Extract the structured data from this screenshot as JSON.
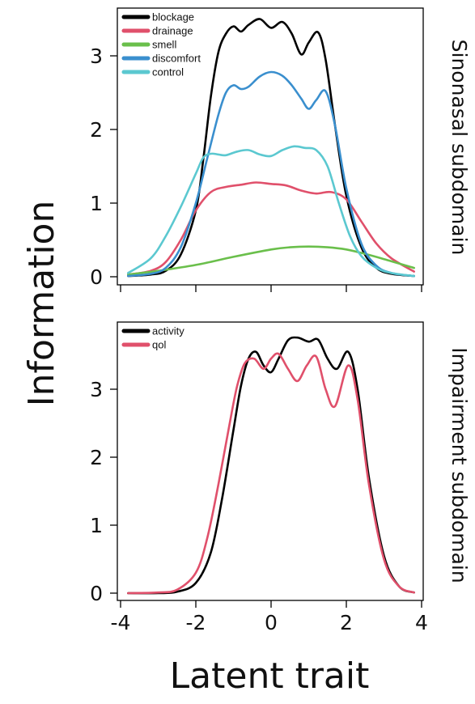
{
  "chart_data": [
    {
      "type": "line",
      "panel_title": "Sinonasal subdomain",
      "xlabel": "Latent trait",
      "ylabel": "Information",
      "xlim": [
        -4,
        4
      ],
      "ylim": [
        0,
        3.6
      ],
      "yticks": [
        "0",
        "1",
        "2",
        "3"
      ],
      "legend_position": "top-left",
      "series": [
        {
          "name": "blockage",
          "color": "#000000",
          "x": [
            -3.8,
            -3.2,
            -2.8,
            -2.4,
            -2.0,
            -1.8,
            -1.6,
            -1.4,
            -1.2,
            -1.0,
            -0.8,
            -0.6,
            -0.3,
            0.0,
            0.3,
            0.55,
            0.8,
            1.0,
            1.25,
            1.45,
            1.7,
            2.0,
            2.4,
            2.8,
            3.2,
            3.8
          ],
          "y": [
            0.01,
            0.03,
            0.08,
            0.3,
            0.9,
            1.6,
            2.45,
            3.05,
            3.3,
            3.4,
            3.33,
            3.42,
            3.5,
            3.38,
            3.46,
            3.3,
            3.02,
            3.18,
            3.32,
            2.95,
            2.05,
            1.1,
            0.4,
            0.12,
            0.04,
            0.01
          ]
        },
        {
          "name": "drainage",
          "color": "#e0506b",
          "x": [
            -3.8,
            -3.2,
            -2.8,
            -2.4,
            -2.0,
            -1.6,
            -1.2,
            -0.8,
            -0.4,
            0.0,
            0.4,
            0.8,
            1.2,
            1.6,
            2.0,
            2.4,
            2.8,
            3.2,
            3.8
          ],
          "y": [
            0.03,
            0.08,
            0.2,
            0.5,
            0.9,
            1.15,
            1.22,
            1.25,
            1.28,
            1.26,
            1.24,
            1.17,
            1.13,
            1.15,
            1.05,
            0.75,
            0.45,
            0.25,
            0.07
          ]
        },
        {
          "name": "smell",
          "color": "#6abf4b",
          "x": [
            -3.8,
            -3.0,
            -2.0,
            -1.0,
            0.0,
            0.5,
            1.0,
            1.5,
            2.0,
            2.5,
            3.0,
            3.8
          ],
          "y": [
            0.03,
            0.08,
            0.16,
            0.27,
            0.37,
            0.4,
            0.41,
            0.4,
            0.37,
            0.31,
            0.24,
            0.12
          ]
        },
        {
          "name": "discomfort",
          "color": "#3a8fce",
          "x": [
            -3.8,
            -3.2,
            -2.8,
            -2.4,
            -2.0,
            -1.7,
            -1.4,
            -1.2,
            -1.0,
            -0.8,
            -0.6,
            -0.3,
            0.0,
            0.3,
            0.55,
            0.8,
            1.0,
            1.2,
            1.45,
            1.7,
            2.0,
            2.4,
            2.8,
            3.2,
            3.8
          ],
          "y": [
            0.01,
            0.04,
            0.12,
            0.4,
            1.0,
            1.6,
            2.2,
            2.5,
            2.6,
            2.55,
            2.58,
            2.72,
            2.78,
            2.73,
            2.6,
            2.42,
            2.28,
            2.4,
            2.52,
            2.05,
            1.2,
            0.45,
            0.15,
            0.05,
            0.01
          ]
        },
        {
          "name": "control",
          "color": "#5bc8d0",
          "x": [
            -3.8,
            -3.2,
            -2.8,
            -2.4,
            -2.0,
            -1.8,
            -1.6,
            -1.4,
            -1.2,
            -0.9,
            -0.6,
            -0.3,
            0.0,
            0.3,
            0.6,
            0.9,
            1.2,
            1.5,
            1.8,
            2.1,
            2.4,
            2.8,
            3.2,
            3.8
          ],
          "y": [
            0.05,
            0.25,
            0.55,
            0.95,
            1.4,
            1.62,
            1.67,
            1.66,
            1.65,
            1.7,
            1.72,
            1.66,
            1.64,
            1.72,
            1.77,
            1.75,
            1.72,
            1.5,
            1.0,
            0.55,
            0.28,
            0.12,
            0.05,
            0.01
          ]
        }
      ]
    },
    {
      "type": "line",
      "panel_title": "Impairment subdomain",
      "xlabel": "Latent trait",
      "ylabel": "Information",
      "xlim": [
        -4,
        4
      ],
      "ylim": [
        0,
        3.9
      ],
      "xticks": [
        "-4",
        "-2",
        "0",
        "2",
        "4"
      ],
      "yticks": [
        "0",
        "1",
        "2",
        "3"
      ],
      "legend_position": "top-left",
      "series": [
        {
          "name": "activity",
          "color": "#000000",
          "x": [
            -3.8,
            -3.0,
            -2.5,
            -2.0,
            -1.6,
            -1.3,
            -1.0,
            -0.8,
            -0.6,
            -0.4,
            -0.2,
            0.0,
            0.2,
            0.45,
            0.7,
            1.0,
            1.25,
            1.5,
            1.75,
            2.05,
            2.3,
            2.6,
            3.0,
            3.4,
            3.8
          ],
          "y": [
            0.0,
            0.0,
            0.02,
            0.15,
            0.6,
            1.4,
            2.4,
            3.05,
            3.45,
            3.55,
            3.35,
            3.25,
            3.45,
            3.72,
            3.76,
            3.7,
            3.73,
            3.45,
            3.3,
            3.55,
            3.0,
            1.7,
            0.55,
            0.1,
            0.01
          ]
        },
        {
          "name": "qol",
          "color": "#e0506b",
          "x": [
            -3.8,
            -3.0,
            -2.5,
            -2.0,
            -1.7,
            -1.4,
            -1.1,
            -0.9,
            -0.7,
            -0.45,
            -0.2,
            0.0,
            0.2,
            0.45,
            0.7,
            0.95,
            1.2,
            1.45,
            1.7,
            2.05,
            2.3,
            2.6,
            3.0,
            3.4,
            3.8
          ],
          "y": [
            0.0,
            0.01,
            0.05,
            0.3,
            0.8,
            1.6,
            2.5,
            3.05,
            3.38,
            3.45,
            3.3,
            3.45,
            3.52,
            3.3,
            3.12,
            3.35,
            3.48,
            3.0,
            2.75,
            3.35,
            2.85,
            1.6,
            0.5,
            0.1,
            0.01
          ]
        }
      ]
    }
  ]
}
